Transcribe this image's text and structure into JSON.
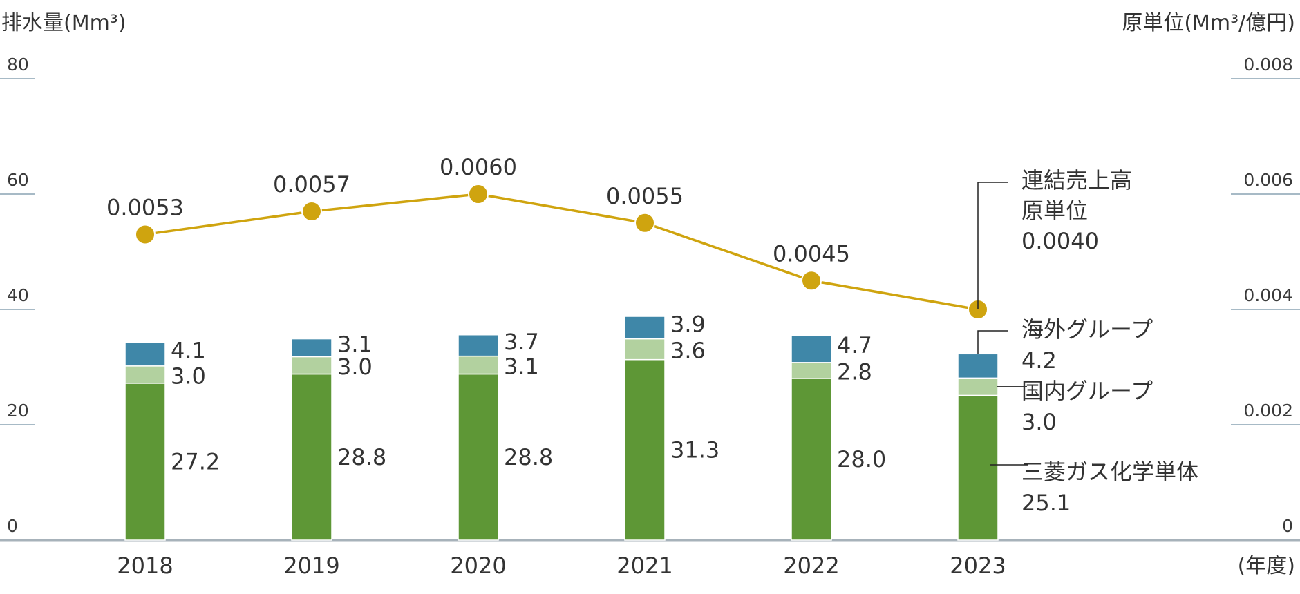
{
  "chart_data": {
    "type": "bar",
    "stacked": true,
    "categories": [
      "2018",
      "2019",
      "2020",
      "2021",
      "2022",
      "2023"
    ],
    "x_unit": "(年度)",
    "y_left": {
      "label": "排水量(Mm³)",
      "ticks": [
        "0",
        "20",
        "40",
        "60",
        "80"
      ],
      "range": [
        0,
        80
      ]
    },
    "y_right": {
      "label": "原単位(Mm³/億円)",
      "ticks": [
        "0",
        "0.002",
        "0.004",
        "0.006",
        "0.008"
      ],
      "range": [
        0,
        0.008
      ]
    },
    "series": [
      {
        "name": "三菱ガス化学単体",
        "color": "#5e9736",
        "values": [
          27.2,
          28.8,
          28.8,
          31.3,
          28.0,
          25.1
        ],
        "labels": [
          "27.2",
          "28.8",
          "28.8",
          "31.3",
          "28.0",
          "25.1"
        ]
      },
      {
        "name": "国内グループ",
        "color": "#b2d19f",
        "values": [
          3.0,
          3.0,
          3.1,
          3.6,
          2.8,
          3.0
        ],
        "labels": [
          "3.0",
          "3.0",
          "3.1",
          "3.6",
          "2.8",
          "3.0"
        ]
      },
      {
        "name": "海外グループ",
        "color": "#3f87a8",
        "values": [
          4.1,
          3.1,
          3.7,
          3.9,
          4.7,
          4.2
        ],
        "labels": [
          "4.1",
          "3.1",
          "3.7",
          "3.9",
          "4.7",
          "4.2"
        ]
      }
    ],
    "line": {
      "name": "連結売上高原単位",
      "color": "#cfa40f",
      "axis": "right",
      "values": [
        0.0053,
        0.0057,
        0.006,
        0.0055,
        0.0045,
        0.004
      ],
      "labels": [
        "0.0053",
        "0.0057",
        "0.0060",
        "0.0055",
        "0.0045",
        "0.0040"
      ]
    },
    "callouts": {
      "line": [
        "連結売上高",
        "原単位",
        "0.0040"
      ],
      "overseas": [
        "海外グループ",
        "4.2"
      ],
      "domestic": [
        "国内グループ",
        "3.0"
      ],
      "parent": [
        "三菱ガス化学単体",
        "25.1"
      ]
    }
  }
}
